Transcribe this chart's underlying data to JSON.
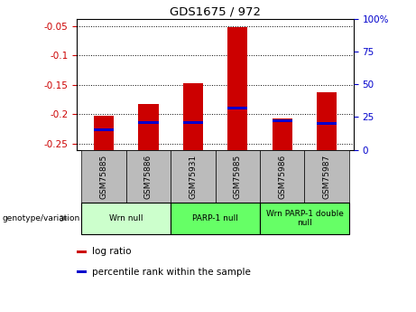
{
  "title": "GDS1675 / 972",
  "samples": [
    "GSM75885",
    "GSM75886",
    "GSM75931",
    "GSM75985",
    "GSM75986",
    "GSM75987"
  ],
  "log_ratios": [
    -0.202,
    -0.182,
    -0.148,
    -0.052,
    -0.207,
    -0.163
  ],
  "percentile_ranks": [
    15,
    21,
    21,
    32,
    22,
    20
  ],
  "ylim_left": [
    -0.26,
    -0.038
  ],
  "ylim_right": [
    0,
    100
  ],
  "left_ticks": [
    -0.25,
    -0.2,
    -0.15,
    -0.1,
    -0.05
  ],
  "right_ticks": [
    0,
    25,
    50,
    75,
    100
  ],
  "groups": [
    {
      "label": "Wrn null",
      "start": 0,
      "end": 2,
      "color": "#ccffcc"
    },
    {
      "label": "PARP-1 null",
      "start": 2,
      "end": 4,
      "color": "#66ff66"
    },
    {
      "label": "Wrn PARP-1 double\nnull",
      "start": 4,
      "end": 6,
      "color": "#66ff66"
    }
  ],
  "bar_color": "#cc0000",
  "dot_color": "#0000cc",
  "bg_color": "#ffffff",
  "plot_bg": "#ffffff",
  "grid_color": "#000000",
  "sample_bg": "#bbbbbb",
  "legend_items": [
    {
      "label": "log ratio",
      "color": "#cc0000"
    },
    {
      "label": "percentile rank within the sample",
      "color": "#0000cc"
    }
  ]
}
